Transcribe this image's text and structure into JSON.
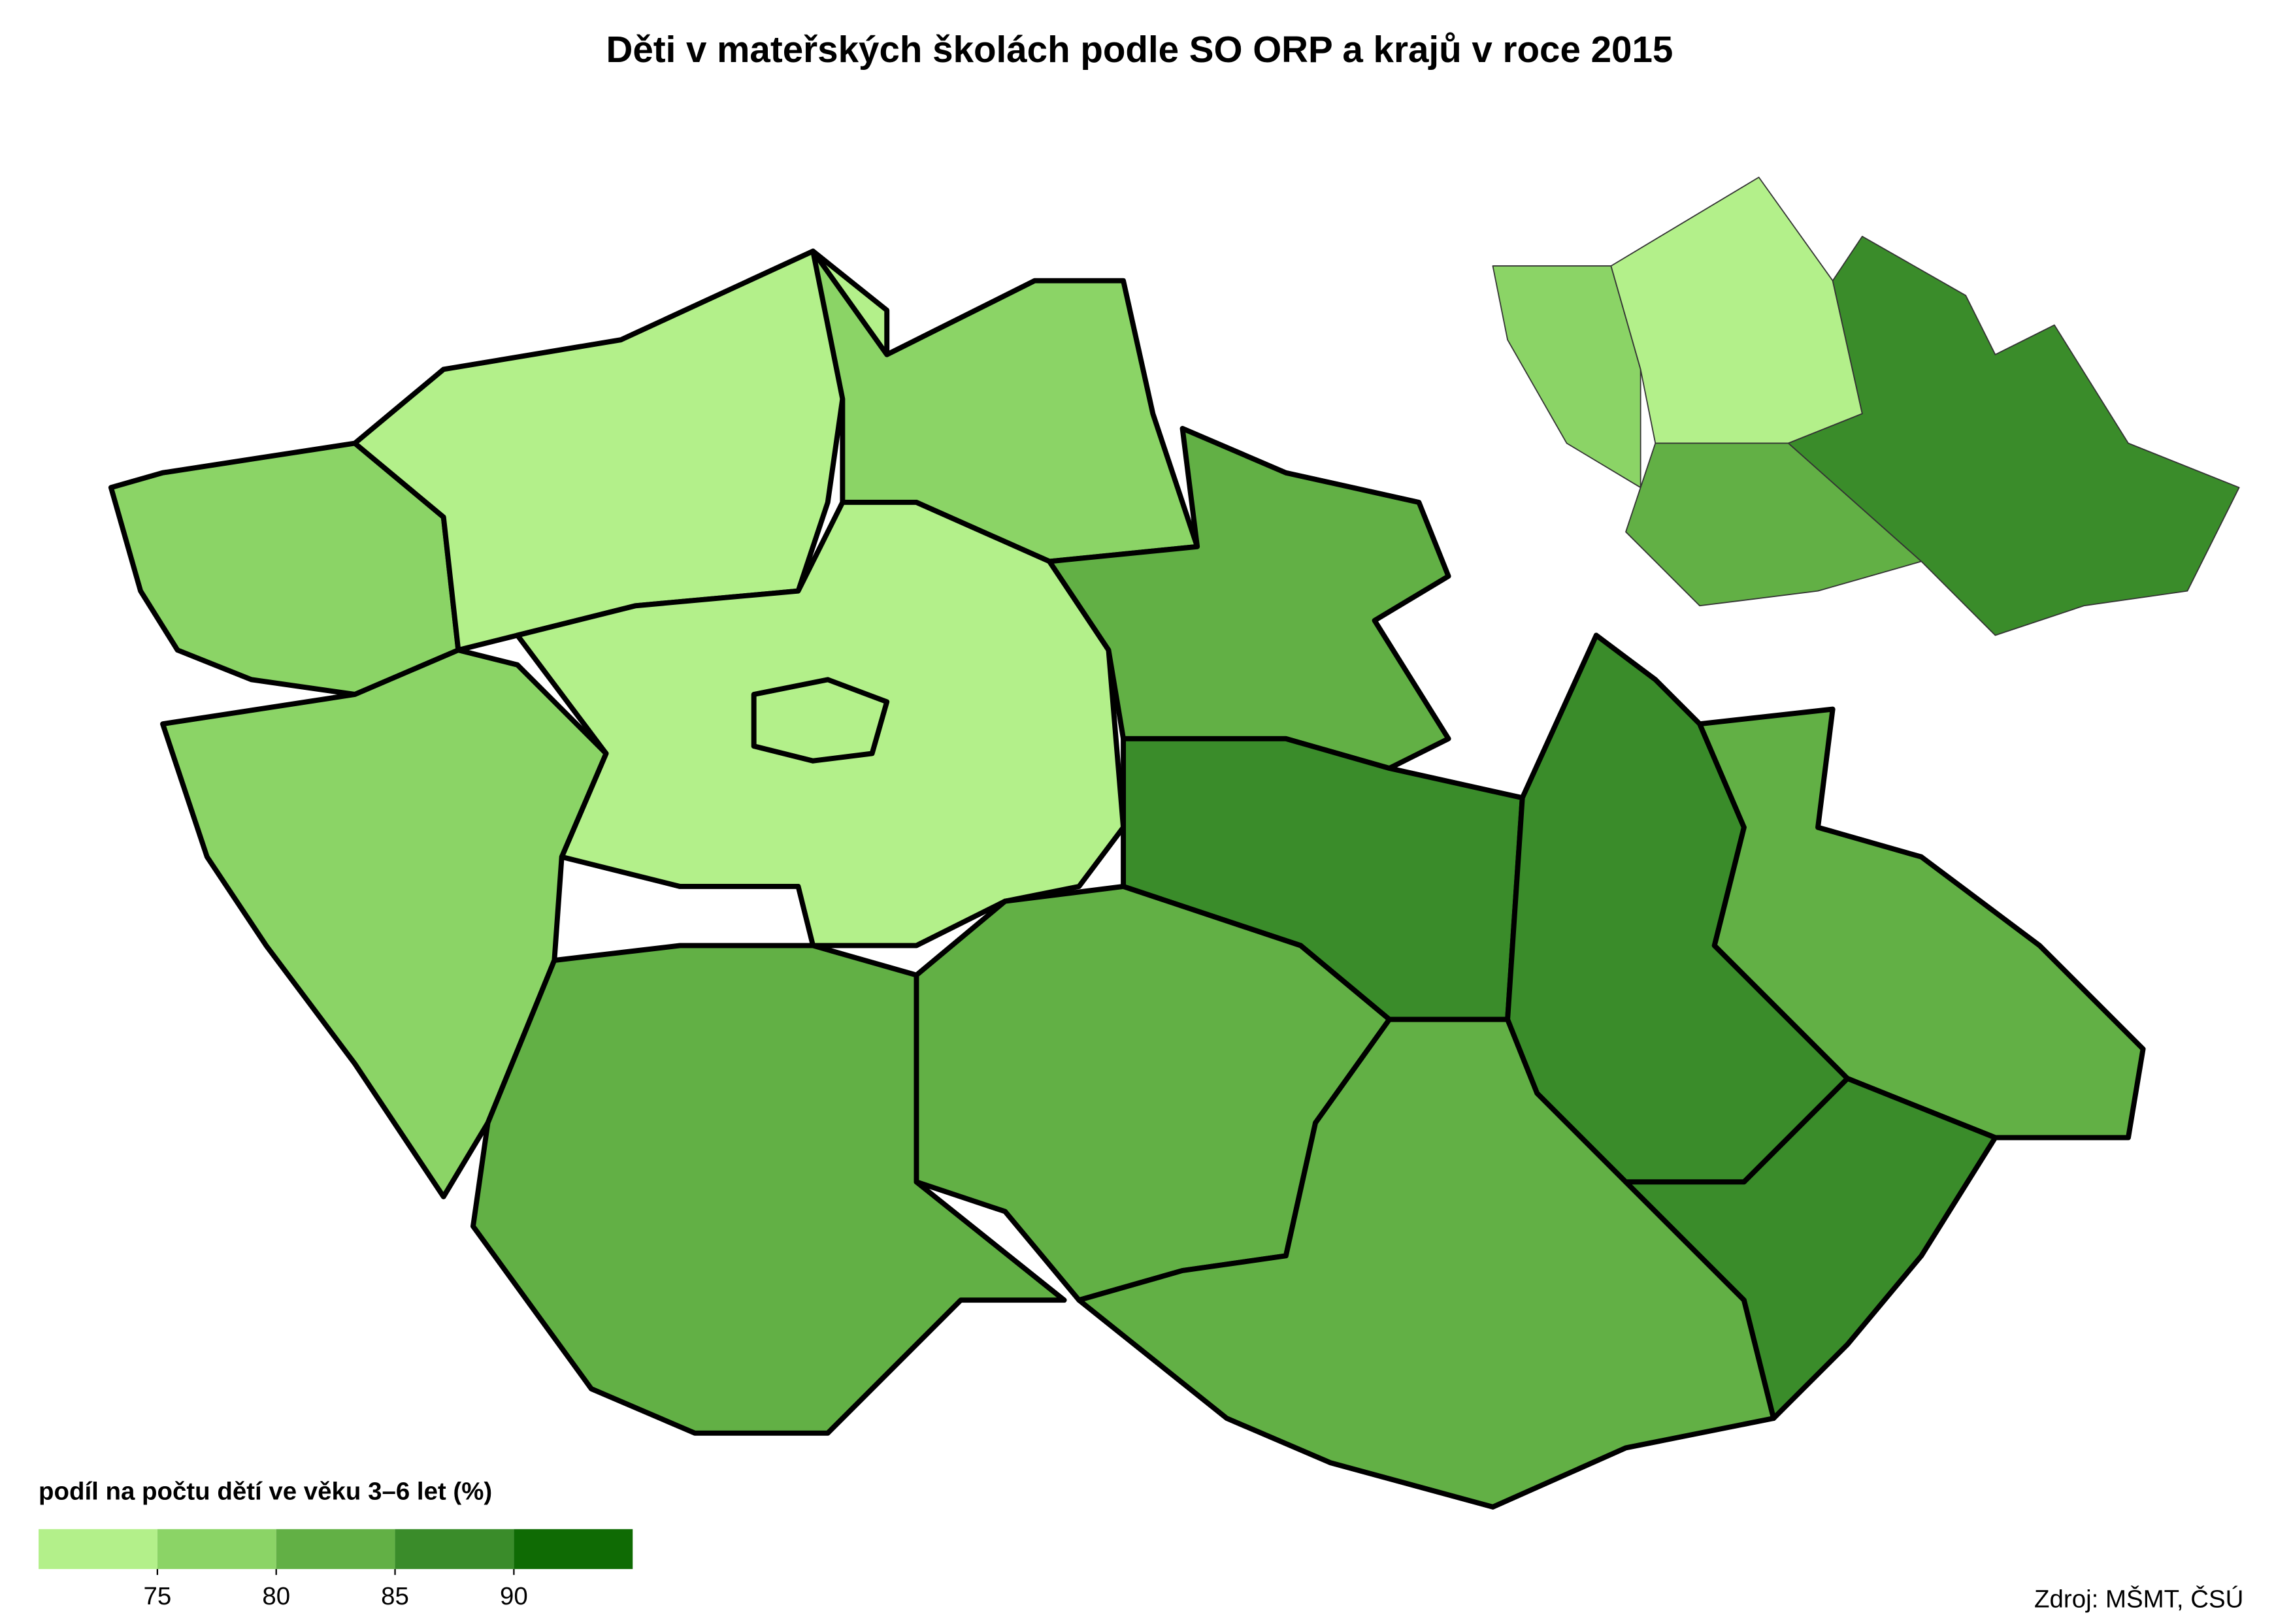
{
  "title": "Děti v mateřských školách podle SO ORP a krajů v roce 2015",
  "legend": {
    "title": "podíl na počtu dětí ve věku 3–6 let (%)",
    "colors": [
      "#b3f08a",
      "#8bd466",
      "#62b045",
      "#3a8c2a",
      "#0f6b04"
    ],
    "ticks": [
      75,
      80,
      85,
      90
    ]
  },
  "source": "Zdroj: MŠMT, ČSÚ"
}
